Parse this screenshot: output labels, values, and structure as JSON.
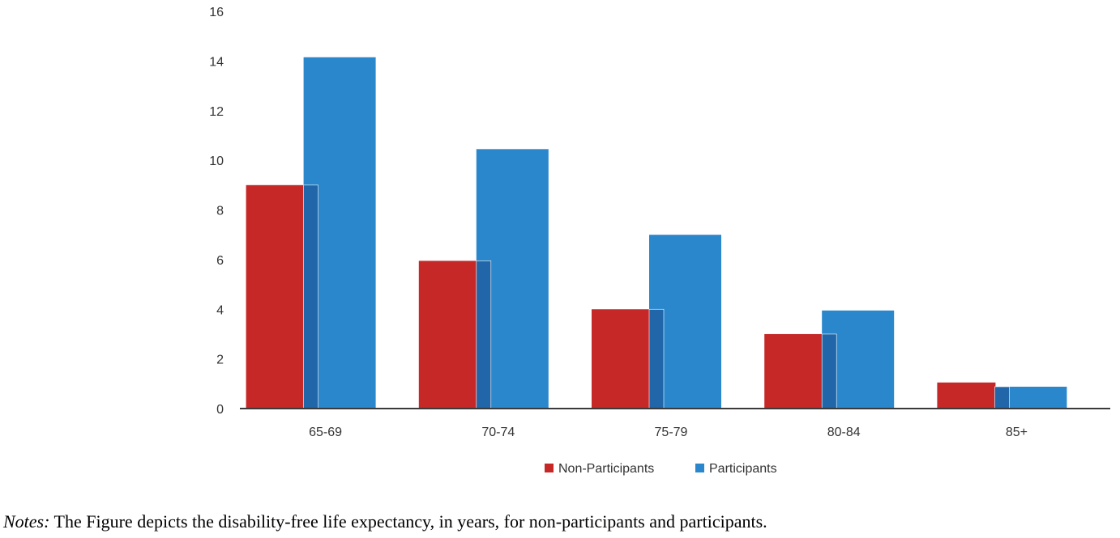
{
  "chart_data": {
    "type": "bar",
    "categories": [
      "65-69",
      "70-74",
      "75-79",
      "80-84",
      "85+"
    ],
    "series": [
      {
        "name": "Non-Participants",
        "values": [
          9.0,
          5.95,
          4.0,
          3.0,
          1.05
        ],
        "color": "#c62828"
      },
      {
        "name": "Participants",
        "values": [
          14.15,
          10.45,
          7.0,
          3.95,
          0.88
        ],
        "color": "#2a87cc"
      }
    ],
    "overlap_color": "#2066a8",
    "y_ticks": [
      "0",
      "2",
      "4",
      "6",
      "8",
      "10",
      "12",
      "14",
      "16"
    ],
    "ylim": [
      0,
      16
    ],
    "title": "",
    "xlabel": "",
    "ylabel": "",
    "legend_position": "bottom-center"
  },
  "notes": {
    "lead": "Notes:",
    "text": " The Figure depicts the disability-free life expectancy, in years, for non-participants and participants."
  }
}
